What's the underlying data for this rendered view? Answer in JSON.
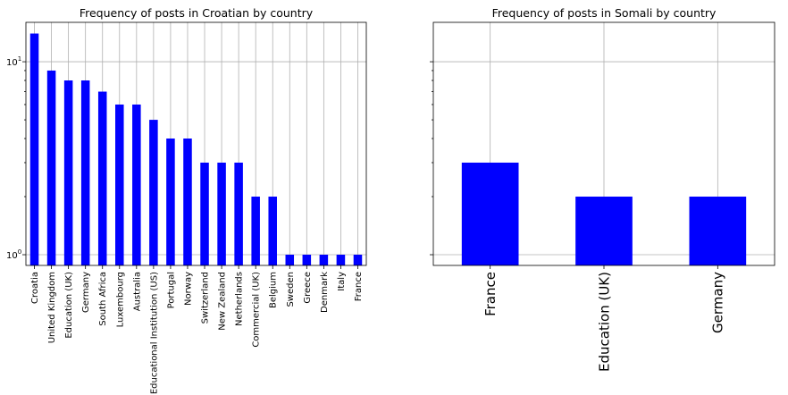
{
  "chart_data": [
    {
      "type": "bar",
      "title": "Frequency of posts in Croatian by country",
      "yscale": "log",
      "ylim": [
        0.88,
        16
      ],
      "y_tick_labels": [
        "10",
        "10"
      ],
      "y_tick_exponents": [
        "0",
        "1"
      ],
      "grid": true,
      "bar_color": "#0000ff",
      "categories": [
        "Croatia",
        "United Kingdom",
        "Education (UK)",
        "Germany",
        "South Africa",
        "Luxembourg",
        "Australia",
        "Educational Institution (US)",
        "Portugal",
        "Norway",
        "Switzerland",
        "New Zealand",
        "Netherlands",
        "Commercial (UK)",
        "Belgium",
        "Sweden",
        "Greece",
        "Denmark",
        "Italy",
        "France"
      ],
      "values": [
        14,
        9,
        8,
        8,
        7,
        6,
        6,
        5,
        4,
        4,
        3,
        3,
        3,
        2,
        2,
        1,
        1,
        1,
        1,
        1
      ]
    },
    {
      "type": "bar",
      "title": "Frequency of posts in Somali by country",
      "yscale": "log",
      "ylim": [
        0.88,
        16
      ],
      "shared_y": true,
      "grid": true,
      "bar_color": "#0000ff",
      "categories": [
        "France",
        "Education (UK)",
        "Germany"
      ],
      "values": [
        3,
        2,
        2
      ]
    }
  ]
}
